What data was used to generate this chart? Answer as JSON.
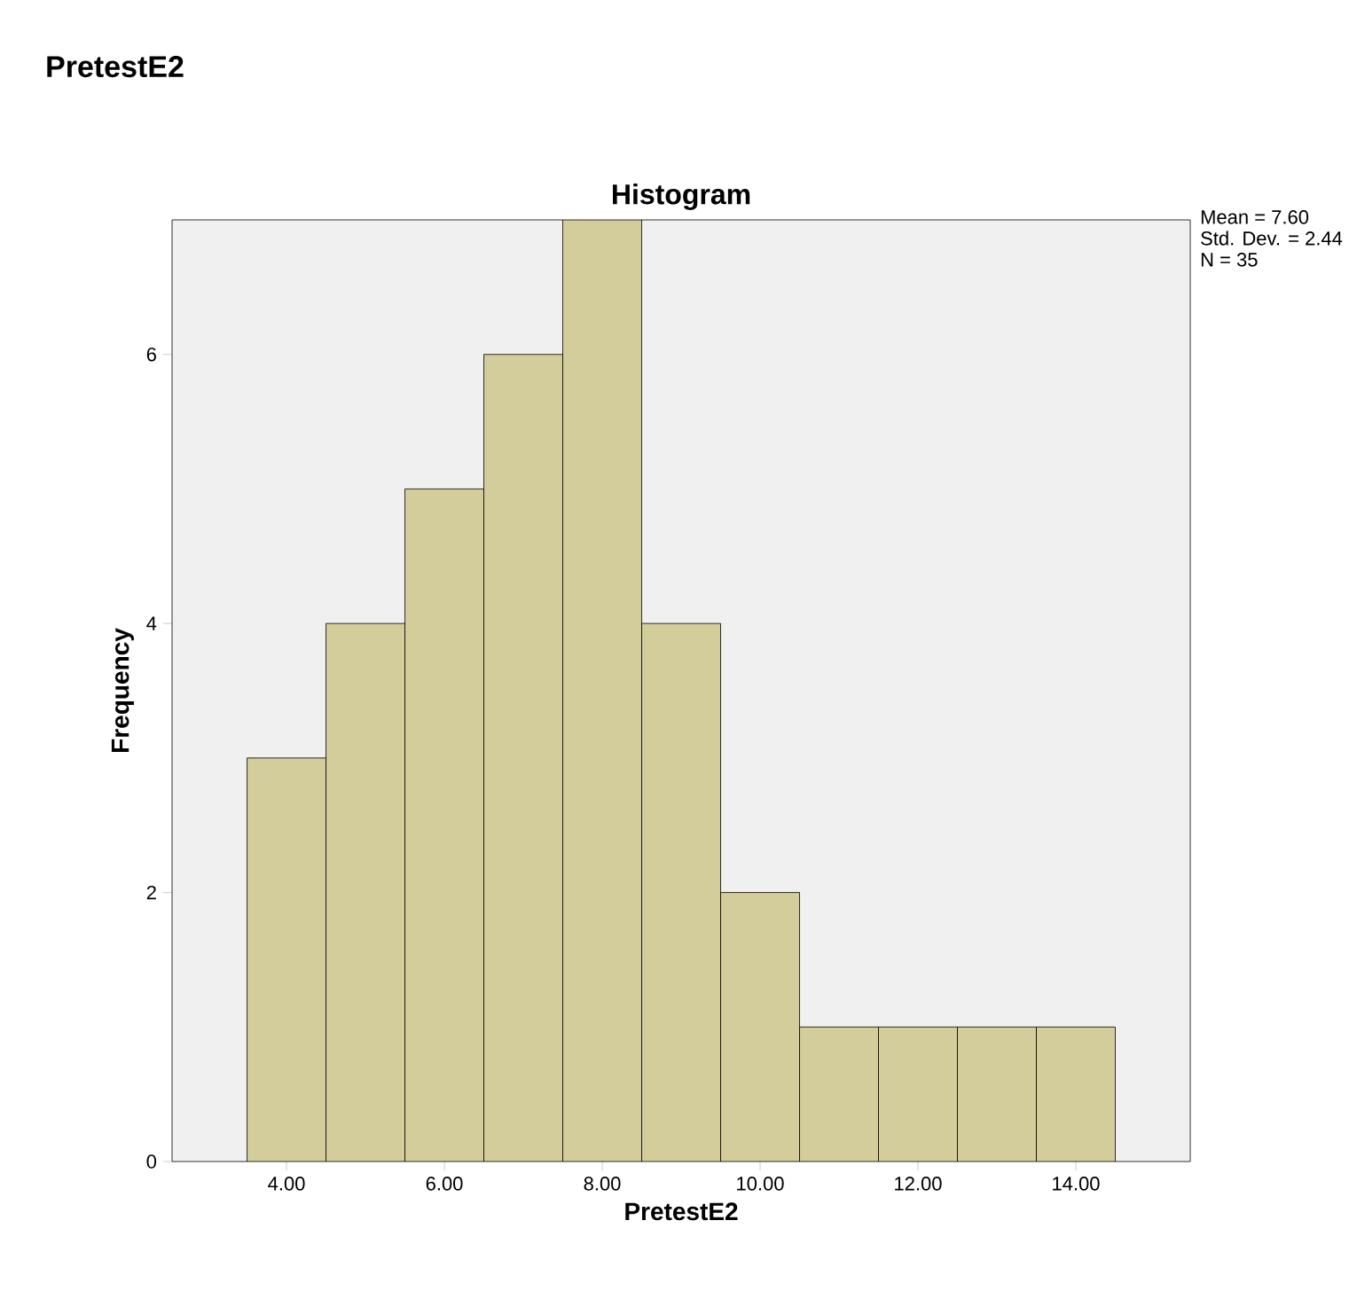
{
  "chart_data": {
    "type": "histogram",
    "title": "Histogram",
    "xlabel": "PretestE2",
    "ylabel": "Frequency",
    "annotations": [
      "PretestE2",
      "Mean = 7.60",
      "Std. Dev. = 2.44",
      "N = 35"
    ],
    "bins": [
      3.5,
      4.5,
      5.5,
      6.5,
      7.5,
      8.5,
      9.5,
      10.5,
      11.5,
      12.5,
      13.5,
      14.5
    ],
    "values": [
      3,
      4,
      5,
      6,
      7,
      4,
      2,
      1,
      1,
      1,
      1
    ],
    "color": "#d2cd9b",
    "xlim": [
      2.55,
      15.45
    ],
    "ylim": [
      0,
      7
    ],
    "xticks": [
      {
        "value": 4,
        "label": "4.00"
      },
      {
        "value": 6,
        "label": "6.00"
      },
      {
        "value": 8,
        "label": "8.00"
      },
      {
        "value": 10,
        "label": "10.00"
      },
      {
        "value": 12,
        "label": "12.00"
      },
      {
        "value": 14,
        "label": "14.00"
      }
    ],
    "yticks": [
      0,
      2,
      4,
      6
    ]
  }
}
